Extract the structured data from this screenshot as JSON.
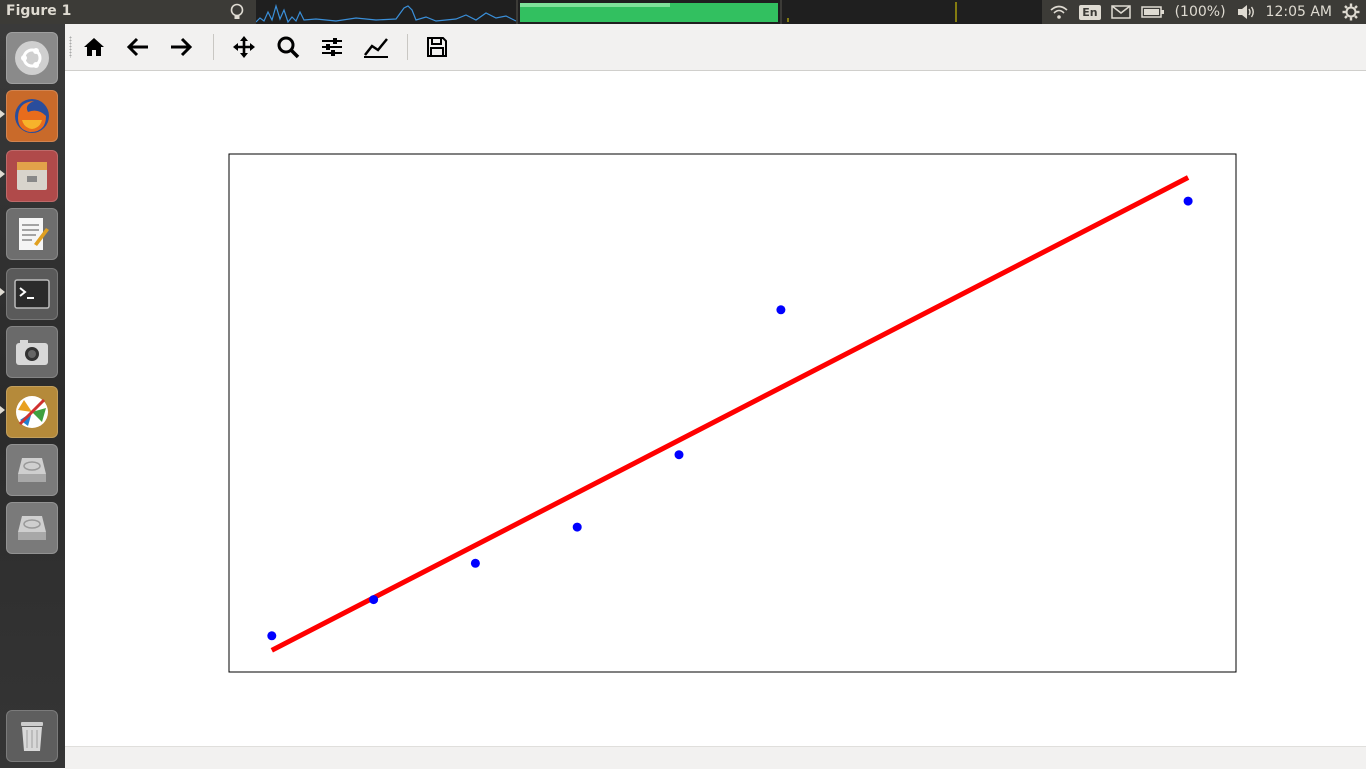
{
  "window": {
    "title": "Figure 1"
  },
  "panel": {
    "keyboard_layout": "En",
    "battery_text": "(100%)",
    "clock": "12:05 AM"
  },
  "launcher": {
    "items": [
      {
        "name": "ubuntu-dash-icon"
      },
      {
        "name": "firefox-icon"
      },
      {
        "name": "files-icon"
      },
      {
        "name": "text-editor-icon"
      },
      {
        "name": "terminal-icon"
      },
      {
        "name": "screenshot-camera-icon"
      },
      {
        "name": "mixer-app-icon"
      },
      {
        "name": "drive-icon"
      },
      {
        "name": "drive-icon"
      },
      {
        "name": "trash-icon"
      }
    ]
  },
  "toolbar": {
    "buttons": [
      "home-icon",
      "back-icon",
      "forward-icon",
      "pan-icon",
      "zoom-icon",
      "subplots-icon",
      "customize-icon",
      "save-icon"
    ]
  },
  "colors": {
    "points": "#0000ff",
    "fit_line": "#ff0000",
    "panel": "#3c3b37"
  },
  "chart_data": {
    "type": "scatter",
    "title": "",
    "xlabel": "",
    "ylabel": "",
    "xlim": [
      0.58,
      10.47
    ],
    "ylim": [
      0.3,
      14.6
    ],
    "grid": false,
    "series": [
      {
        "kind": "scatter",
        "x": [
          1,
          2,
          3,
          4,
          5,
          6,
          10
        ],
        "y": [
          1.3,
          2.3,
          3.3,
          4.3,
          6.3,
          10.3,
          13.3
        ]
      },
      {
        "kind": "line",
        "x": [
          1,
          10
        ],
        "y": [
          0.9,
          13.95
        ]
      }
    ]
  }
}
